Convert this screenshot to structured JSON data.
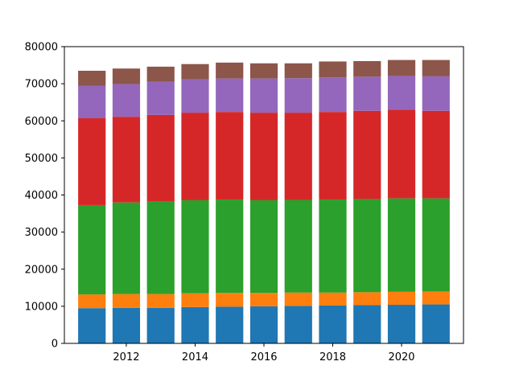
{
  "chart_data": {
    "type": "bar",
    "stacked": true,
    "x": [
      2011,
      2012,
      2013,
      2014,
      2015,
      2016,
      2017,
      2018,
      2019,
      2020,
      2021
    ],
    "series": [
      {
        "color": "#1f77b4",
        "values": [
          9500,
          9600,
          9600,
          9800,
          9900,
          10000,
          10100,
          10200,
          10300,
          10400,
          10500
        ]
      },
      {
        "color": "#ff7f0e",
        "values": [
          3700,
          3700,
          3700,
          3700,
          3700,
          3600,
          3600,
          3500,
          3500,
          3500,
          3500
        ]
      },
      {
        "color": "#2ca02c",
        "values": [
          24100,
          24700,
          24900,
          25100,
          25200,
          25000,
          25000,
          25100,
          25100,
          25200,
          25100
        ]
      },
      {
        "color": "#d62728",
        "values": [
          23400,
          23100,
          23400,
          23600,
          23600,
          23600,
          23500,
          23600,
          23800,
          23900,
          23600
        ]
      },
      {
        "color": "#9467bd",
        "values": [
          8700,
          8800,
          8900,
          9000,
          9000,
          9200,
          9300,
          9300,
          9200,
          9100,
          9300
        ]
      },
      {
        "color": "#8c564b",
        "values": [
          4100,
          4200,
          4100,
          4100,
          4300,
          4100,
          4000,
          4300,
          4200,
          4300,
          4400
        ]
      }
    ],
    "ylim": [
      0,
      80000
    ],
    "xlim": [
      2010.2,
      2021.8
    ],
    "yticks": [
      0,
      10000,
      20000,
      30000,
      40000,
      50000,
      60000,
      70000,
      80000
    ],
    "xticks": [
      2012,
      2014,
      2016,
      2018,
      2020
    ],
    "grid": false,
    "title": "",
    "xlabel": "",
    "ylabel": ""
  }
}
